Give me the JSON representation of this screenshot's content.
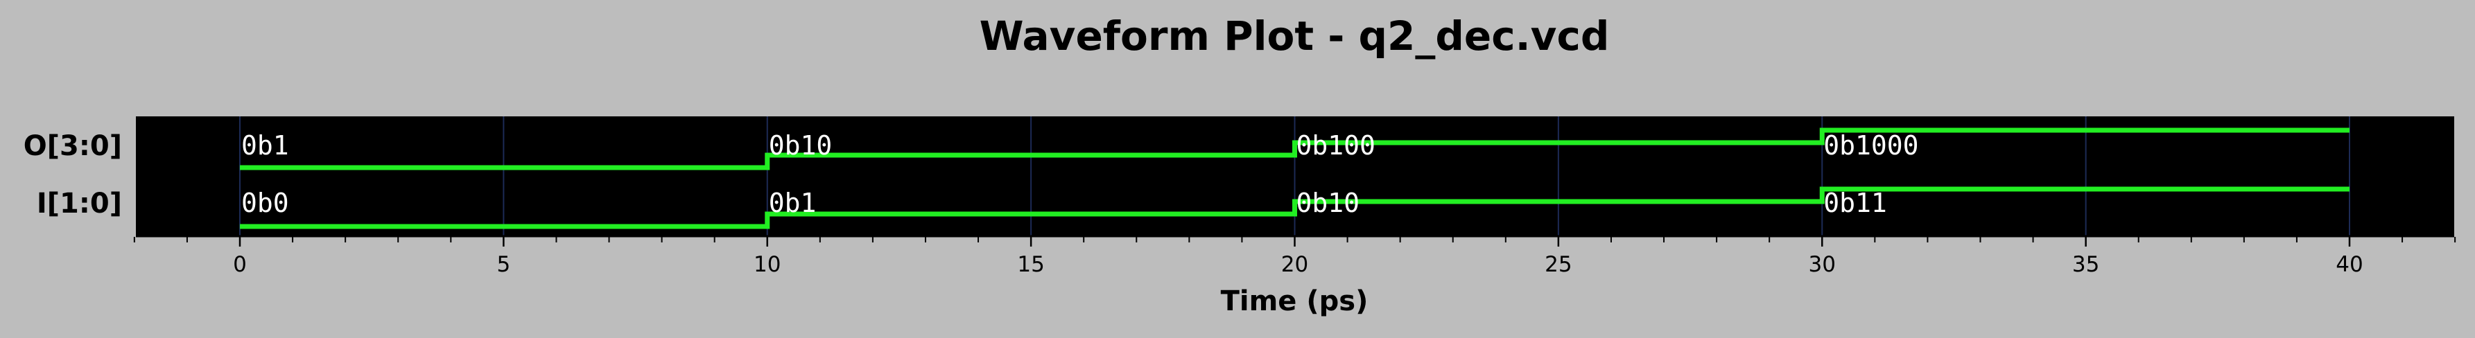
{
  "colors": {
    "background": "#bdbdbd",
    "plot_background": "#000000",
    "waveform": "#22ee22",
    "grid": "#1c2a55",
    "value_text": "#ffffff"
  },
  "chart_data": {
    "type": "line",
    "title": "Waveform Plot - q2_dec.vcd",
    "xlabel": "Time (ps)",
    "ylabel": "",
    "xlim": [
      -2.0,
      42.0
    ],
    "xticks": [
      0,
      5,
      10,
      15,
      20,
      25,
      30,
      35,
      40
    ],
    "minor_tick_step": 1,
    "grid": true,
    "end_time": 40,
    "signals": [
      {
        "name": "O[3:0]",
        "changes": [
          {
            "t": 0,
            "value": "0b1",
            "level": 1
          },
          {
            "t": 10,
            "value": "0b10",
            "level": 2
          },
          {
            "t": 20,
            "value": "0b100",
            "level": 3
          },
          {
            "t": 30,
            "value": "0b1000",
            "level": 4
          }
        ]
      },
      {
        "name": "I[1:0]",
        "changes": [
          {
            "t": 0,
            "value": "0b0",
            "level": 0
          },
          {
            "t": 10,
            "value": "0b1",
            "level": 1
          },
          {
            "t": 20,
            "value": "0b10",
            "level": 2
          },
          {
            "t": 30,
            "value": "0b11",
            "level": 3
          }
        ]
      }
    ]
  }
}
